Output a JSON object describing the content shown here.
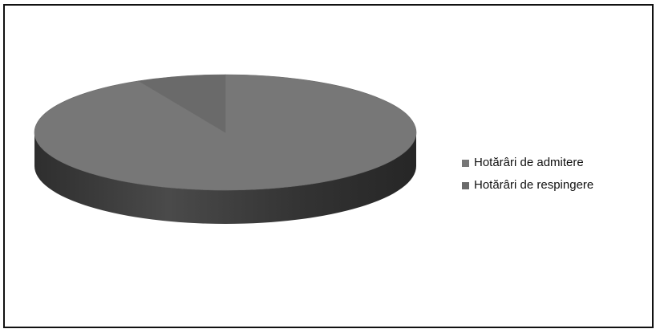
{
  "chart_data": {
    "type": "pie",
    "title": "",
    "categories": [
      "Hotărâri de admitere",
      "Hotărâri de respingere"
    ],
    "values": [
      92.5,
      7.5
    ],
    "colors": [
      "#777777",
      "#6a6a6a"
    ],
    "side_colors": [
      "#3a3a3a",
      "#333333"
    ],
    "legend_position": "right",
    "three_d": true
  }
}
